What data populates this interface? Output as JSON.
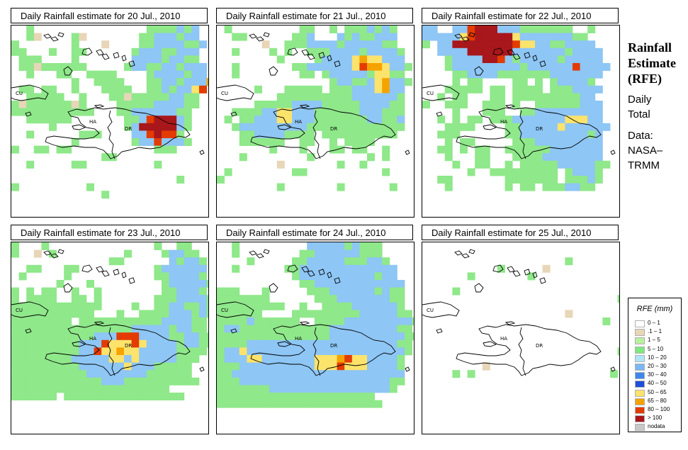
{
  "panels": [
    {
      "title": "Daily Rainfall estimate for  20 Jul., 2010",
      "grid": [
        "..g...............ggggbgb",
        "..gc....gc.......ggbbbgbb",
        "g.......g...c....ggbbbbggb",
        "gg...g..gg......gbbbggbbb",
        ".ggg....g.......bbbbgbbgg",
        ".ggcgggggg.....gbbggbbgbbb",
        "..g...gg..gggg....gbbbbgbb",
        "........g..gggg...ggbbgbbbo",
        ".gg.gg..g...gggg..ggbgbbyr",
        "..ggggg..g...ggcgggggbbgg",
        "gcggggggcg....gggggbbbbgg",
        "ggggggggggg...ggbbbbbbgg",
        "..gggggg.......ggbrRRRbg",
        ".....g.........gbRRRRRbg",
        "..g......ggg....bbrRrrg",
        "........g.......gbbrbbbg",
        "g..gg.gg...........ggg",
        "............gg.........",
        "..g.....gg.........g...",
        "........................",
        "......................g",
        "g.........g............",
        "............g.........."
      ]
    },
    {
      "title": "Daily Rainfall estimate for  21 Jul., 2010",
      "grid": [
        ".g.........gg..g.gggbgbg",
        "..gg......ggb...bgbggbbb",
        "......c..gggbbbbgbbbbbgg",
        "..g....g.g..gggbbbbgbbbbg",
        "........g....gbbbbyoyybbb",
        "..g.......ggbbbbbbyrooybbg",
        "..g........gg.gbbbbbgyygg",
        "...............gbbggbyobbg",
        ".....g...ggggg.gggbbbyobb",
        "........ggggggggggbbbbbbg",
        ".....gggggbbbbgggggbbbbgg",
        "..ggggbbyybbbggggggbbbggg",
        ".g.ggbbbyybbbgggggggbbggb",
        "..gbbbbbbbbbggggggggggggg",
        "...ggbbbbgggg.gggggggggg",
        "...gggggg..gg..g.gggg",
        ".......g...g...gg.gg..g",
        "...g........g.......g.g",
        "........c.......g..g",
        ".g........gg..........g",
        "g..........................",
        "........g.......g......g"
      ]
    },
    {
      "title": "Daily Rainfall estimate for  22 Jul., 2010",
      "grid": [
        "bb..bbrRRRbbbggggggg..g",
        "bbbbbyrRRRRRybbbbbbbgg",
        "g.bbRRRRRRRRryybbggbbbb",
        "..bbbbRRRRRRbbbbbbbgbbbb",
        "...gbbbbRRrbgbbbbbgbbbbb",
        "...gbbbbbbbbbgbbbbbbrbbbb",
        "....ggbbbbgggggggbbbbbbb",
        "....g.gg....gg.g.gbbbbg",
        "...ggggg.gg.gggg.gggbbbb",
        "..g.gg...gg.gggggggggbb",
        "g..ggg..ggg.g..ggggggbbb",
        "....g...ggg..ggbbbbbbbbb",
        "..g.g.gg.gggbbbbbbbyyybb",
        "...gggg....ggbbbbbybbbbbb",
        "..ggg......ggbbbbbbbbbgb",
        "...g.gg.....gggbbbbbbbbb",
        "..gg.g.gg..ggggggbbbbbbb",
        "...g...gg...ggggbbbbbbbb",
        "....g..gg..g.gggggbbbbbgg",
        "......g..ggggggggg.gbbbg",
        "..gg.......ggggggg.gggbg",
        "...g.......g.gg.gggbbgg"
      ]
    },
    {
      "title": "Daily Rainfall estimate for  23 Jul., 2010",
      "grid": [
        "g...g..............g..gg",
        "g..c.g.........g....gbbgg",
        ".............gg......bgbbg",
        "..gg...gg..........gbbbbbb",
        ".g.....g...........ggbbbbg",
        "......g...g.........gbbbbbg",
        "g.g.gg..g..g........ggbbbg",
        "g.gggg..gg.g.......gggbbbbg",
        "gggggggggggg....g..ggbbggbg",
        "ggggggggggg...g..ggggbbbgbg",
        "gggggggg.gggggggggggbbbbgg",
        "ggggggggggggggggbbbbbgbbgg",
        "gggggggggggbbbrrrbbbbggbbgg",
        "gggggggggbbbryyyrybbbbgbbgg",
        "gggggggggbbryyoyybbbbbgggg",
        "ggggggggbbbbbyybybbbbbggg",
        "gggggggggbbbbbbybbbggggg",
        "ggggggggggbbbbbbbbgggggg",
        "ggggggggggggbbbgggggggggg",
        "ggggggggggggggggggggg",
        "gggggg.gggggggggggggggg"
      ]
    },
    {
      "title": "Daily Rainfall estimate for  24 Jul., 2010",
      "grid": [
        "..g.........bbbbbgbggg",
        "..g........ggbbbbbbggg",
        "....g.....ggbbbbbgggbbg",
        "..g......ggbbbbbbbbbbbbb",
        "..........gbbbbbbbbbbgbb",
        "...........ggbbbbbbbbbbbb",
        "ggg...g.....gggbbbbbbgbgg",
        "ggggggg......gggbbbbbbbgg",
        "ggggggggg..g..ggggbbbbbbg",
        "gggggg....gggggggggbbbbbgg",
        "ggggbgggggg..ggggbbbbbbbbbg",
        "gbbggggggggggggbbbbbbbbbgg",
        "gggggggggggggggbbbbbbbbbbgg",
        "ggggbbbbbbbbbbbbbbbbbbbbgg",
        "gbbybbbbbbbbbbbbbbbbbbbbbg",
        "gbbbyybbbbbbbyyyoryybbbbg",
        "gggbbbbbbbbbbyyyryyybbbbg",
        "ggbbbbbbbbbbbbbbbbbbbbbbb",
        "gggbbbbbbbbbbbbbbbbbbbbgg",
        "gggggggbbbbbbbbbbbbbbbbg",
        "ggggggggggggggggggggg",
        "gggggggggggggggggggggg"
      ]
    },
    {
      "title": "Daily Rainfall estimate for  25 Jul., 2010",
      "grid": [
        "",
        "",
        "...................g",
        "..........g.....c",
        "......g.......g",
        "",
        "....g",
        "..........................g",
        "",
        "...................c",
        "........................g",
        "",
        "",
        "",
        "..........................g",
        "",
        "........c",
        "....g.g..................g",
        "",
        "",
        "",
        ""
      ]
    }
  ],
  "map_labels": {
    "cu": "CU",
    "ha": "HA",
    "dr": "DR"
  },
  "title_block": {
    "line1": "Rainfall",
    "line2": "Estimate",
    "line3": "(RFE)",
    "sub1": "Daily",
    "sub2": "Total",
    "data1": "Data:",
    "data2": "NASA–",
    "data3": "TRMM"
  },
  "legend": {
    "title": "RFE (mm)",
    "items": [
      {
        "label": "0 – 1",
        "color": "#ffffff"
      },
      {
        "label": ".1 – 1",
        "color": "#e8d6b8"
      },
      {
        "label": "1 – 5",
        "color": "#b8f0a0"
      },
      {
        "label": "5 – 10",
        "color": "#7fe87f"
      },
      {
        "label": "10 – 20",
        "color": "#aee6f8"
      },
      {
        "label": "20 – 30",
        "color": "#7ab8f5"
      },
      {
        "label": "30 – 40",
        "color": "#3f86eb"
      },
      {
        "label": "40 – 50",
        "color": "#1e4fd6"
      },
      {
        "label": "50 – 65",
        "color": "#fce36b"
      },
      {
        "label": "65 – 80",
        "color": "#f5a300"
      },
      {
        "label": "80 – 100",
        "color": "#e33b00"
      },
      {
        "label": "> 100",
        "color": "#a8171b"
      },
      {
        "label": "nodata",
        "color": "#c8c8c8"
      }
    ]
  },
  "palette": {
    ".": "#ffffff",
    "c": "#e8d6b8",
    "g": "#8fe88a",
    "b": "#8ec6f5",
    "y": "#fce36b",
    "o": "#f5a300",
    "r": "#e33b00",
    "R": "#a8171b"
  }
}
